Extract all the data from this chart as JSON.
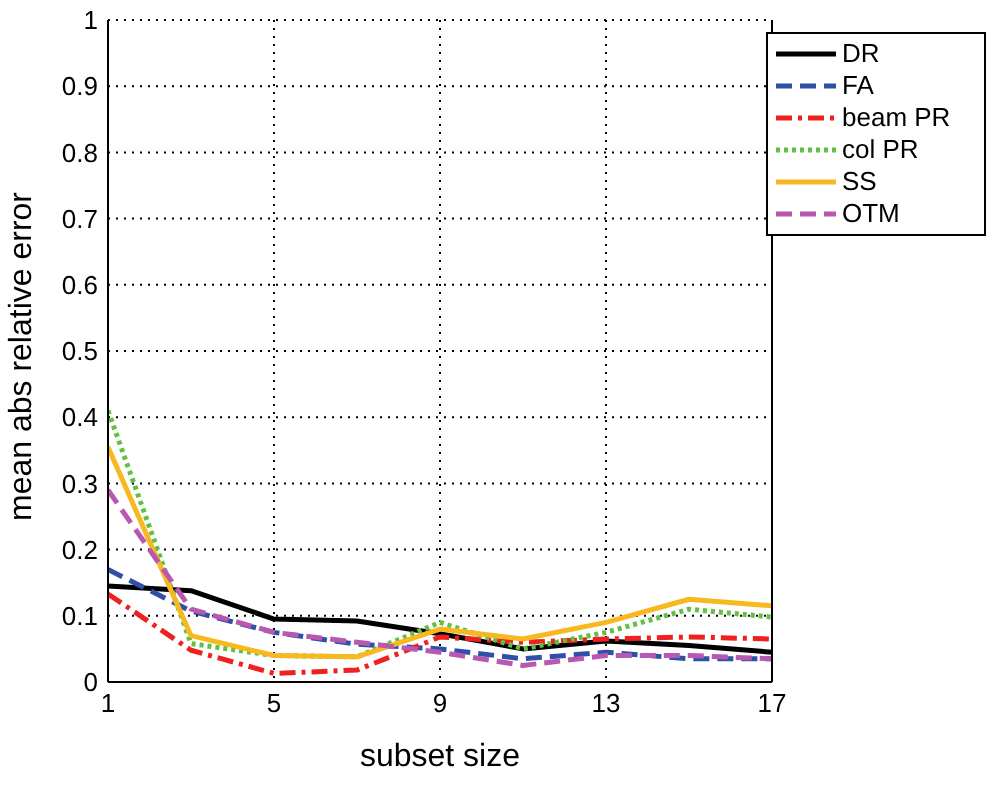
{
  "chart_data": {
    "type": "line",
    "xlabel": "subset size",
    "ylabel": "mean abs relative error",
    "x": [
      1,
      3,
      5,
      7,
      9,
      11,
      13,
      15,
      17
    ],
    "xlim": [
      1,
      17
    ],
    "xticks": [
      1,
      5,
      9,
      13,
      17
    ],
    "ylim": [
      0,
      1
    ],
    "yticks": [
      0,
      0.1,
      0.2,
      0.3,
      0.4,
      0.5,
      0.6,
      0.7,
      0.8,
      0.9,
      1
    ],
    "grid": true,
    "legend": "top right",
    "marker": "none",
    "series": [
      {
        "name": "DR",
        "color": "#000000",
        "line_style": "solid",
        "values": [
          0.145,
          0.138,
          0.095,
          0.092,
          0.073,
          0.05,
          0.062,
          0.055,
          0.045
        ]
      },
      {
        "name": "FA",
        "color": "#3050a8",
        "line_style": "dashed",
        "values": [
          0.17,
          0.107,
          0.075,
          0.057,
          0.05,
          0.035,
          0.045,
          0.035,
          0.035
        ]
      },
      {
        "name": "beam PR",
        "color": "#ee2020",
        "line_style": "dashdot",
        "values": [
          0.133,
          0.048,
          0.013,
          0.018,
          0.068,
          0.06,
          0.065,
          0.068,
          0.065
        ]
      },
      {
        "name": "col PR",
        "color": "#60c040",
        "line_style": "dotted",
        "values": [
          0.41,
          0.058,
          0.04,
          0.038,
          0.09,
          0.05,
          0.075,
          0.11,
          0.098
        ]
      },
      {
        "name": "SS",
        "color": "#f8b820",
        "line_style": "solid",
        "values": [
          0.355,
          0.07,
          0.04,
          0.038,
          0.08,
          0.065,
          0.09,
          0.125,
          0.115
        ]
      },
      {
        "name": "OTM",
        "color": "#b858b0",
        "line_style": "dashed",
        "values": [
          0.29,
          0.11,
          0.075,
          0.06,
          0.045,
          0.025,
          0.04,
          0.04,
          0.035
        ]
      }
    ]
  }
}
